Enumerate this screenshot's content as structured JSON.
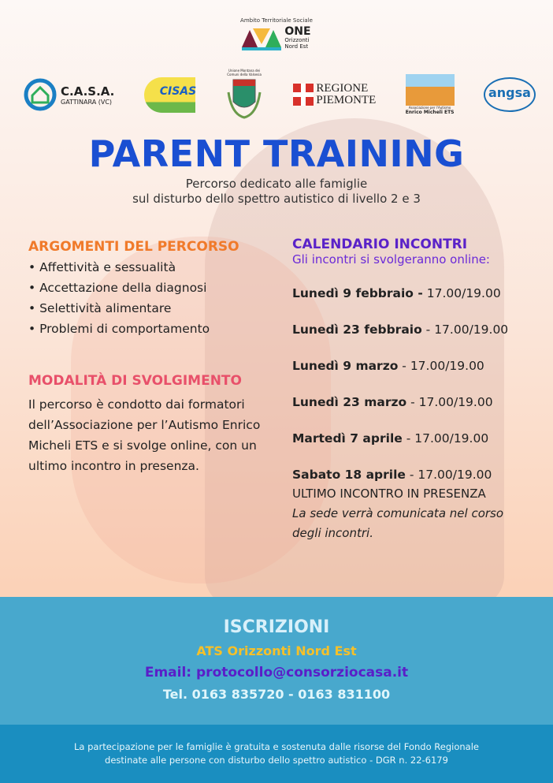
{
  "header": {
    "ats_label": "Ambito Territoriale Sociale",
    "ats_name": "ONE",
    "ats_sub1": "Orizzonti",
    "ats_sub2": "Nord Est"
  },
  "logos": [
    {
      "name": "C.A.S.A.",
      "sub": "GATTINARA (VC)"
    },
    {
      "name": "CISAS"
    },
    {
      "name": "Unione Montana dei Comuni della Valsesia"
    },
    {
      "name": "REGIONE",
      "sub": "PIEMONTE"
    },
    {
      "name": "Associazione per l'Autismo",
      "sub": "Enrico Micheli ETS"
    },
    {
      "name": "angsa"
    }
  ],
  "title": "PARENT TRAINING",
  "subtitle": [
    "Percorso dedicato alle famiglie",
    "sul disturbo dello spettro autistico di livello 2 e 3"
  ],
  "topics": {
    "heading": "ARGOMENTI DEL PERCORSO",
    "items": [
      "• Affettività e sessualità",
      "• Accettazione della diagnosi",
      "• Selettività alimentare",
      "• Problemi di comportamento"
    ]
  },
  "mode": {
    "heading": "MODALITÀ DI SVOLGIMENTO",
    "text": "Il percorso è condotto dai formatori dell’Associazione per l’Autismo Enrico Micheli ETS e si svolge online, con un ultimo incontro in presenza."
  },
  "calendar": {
    "heading": "CALENDARIO INCONTRI",
    "intro": "Gli incontri si svolgeranno online:",
    "dates": [
      {
        "day": "Lunedì 9 febbraio -",
        "time": " 17.00/19.00"
      },
      {
        "day": "Lunedì 23 febbraio",
        "time": " - 17.00/19.00"
      },
      {
        "day": "Lunedì 9 marzo",
        "time": " - 17.00/19.00"
      },
      {
        "day": "Lunedì 23 marzo",
        "time": " - 17.00/19.00"
      },
      {
        "day": "Martedì 7 aprile",
        "time": " - 17.00/19.00"
      },
      {
        "day": "Sabato 18 aprile",
        "time": " - 17.00/19.00"
      }
    ],
    "last_note": "ULTIMO INCONTRO IN PRESENZA",
    "place_note": "La sede verrà comunicata nel corso degli incontri."
  },
  "signup": {
    "heading": "ISCRIZIONI",
    "org": "ATS Orizzonti Nord Est",
    "email": "Email: protocollo@consorziocasa.it",
    "phone": "Tel. 0163 835720 - 0163 831100"
  },
  "footer": [
    "La partecipazione per le famiglie è gratuita e sostenuta dalle risorse del Fondo Regionale",
    "destinate alle persone con disturbo dello spettro autistico - DGR n. 22-6179"
  ],
  "colors": {
    "title": "#1a4fd2",
    "orange": "#f07a2a",
    "pink": "#e8506a",
    "purple": "#5a22c8",
    "signup_bg": "#48a8cd",
    "footer_bg": "#1a8ec0"
  }
}
